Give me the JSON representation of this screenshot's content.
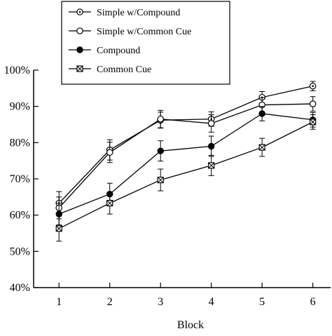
{
  "chart_data": {
    "type": "line",
    "title": "",
    "xlabel": "Block",
    "ylabel": "",
    "x": [
      1,
      2,
      3,
      4,
      5,
      6
    ],
    "xlim": [
      0.5,
      6.35
    ],
    "ylim": [
      0.4,
      1.0
    ],
    "yticks": [
      0.4,
      0.5,
      0.6,
      0.7,
      0.8,
      0.9,
      1.0
    ],
    "ytick_labels": [
      "40%",
      "50%",
      "60%",
      "70%",
      "80%",
      "90%",
      "100%"
    ],
    "xtick_labels": [
      "1",
      "2",
      "3",
      "4",
      "5",
      "6"
    ],
    "grid": false,
    "legend_position": "top",
    "series": [
      {
        "name": "Simple w/Compound",
        "marker": "circle-dot",
        "values": [
          0.633,
          0.78,
          0.862,
          0.865,
          0.925,
          0.956
        ],
        "errors": [
          0.032,
          0.028,
          0.022,
          0.02,
          0.016,
          0.013
        ]
      },
      {
        "name": "Simple w/Common Cue",
        "marker": "circle-open",
        "values": [
          0.62,
          0.773,
          0.865,
          0.853,
          0.904,
          0.907
        ],
        "errors": [
          0.03,
          0.028,
          0.024,
          0.024,
          0.02,
          0.02
        ]
      },
      {
        "name": "Compound",
        "marker": "circle-filled",
        "values": [
          0.603,
          0.658,
          0.777,
          0.79,
          0.88,
          0.863
        ],
        "errors": [
          0.03,
          0.03,
          0.028,
          0.028,
          0.02,
          0.02
        ]
      },
      {
        "name": "Common Cue",
        "marker": "square-x",
        "values": [
          0.563,
          0.633,
          0.697,
          0.737,
          0.787,
          0.857
        ],
        "errors": [
          0.035,
          0.03,
          0.03,
          0.028,
          0.025,
          0.02
        ]
      }
    ]
  }
}
